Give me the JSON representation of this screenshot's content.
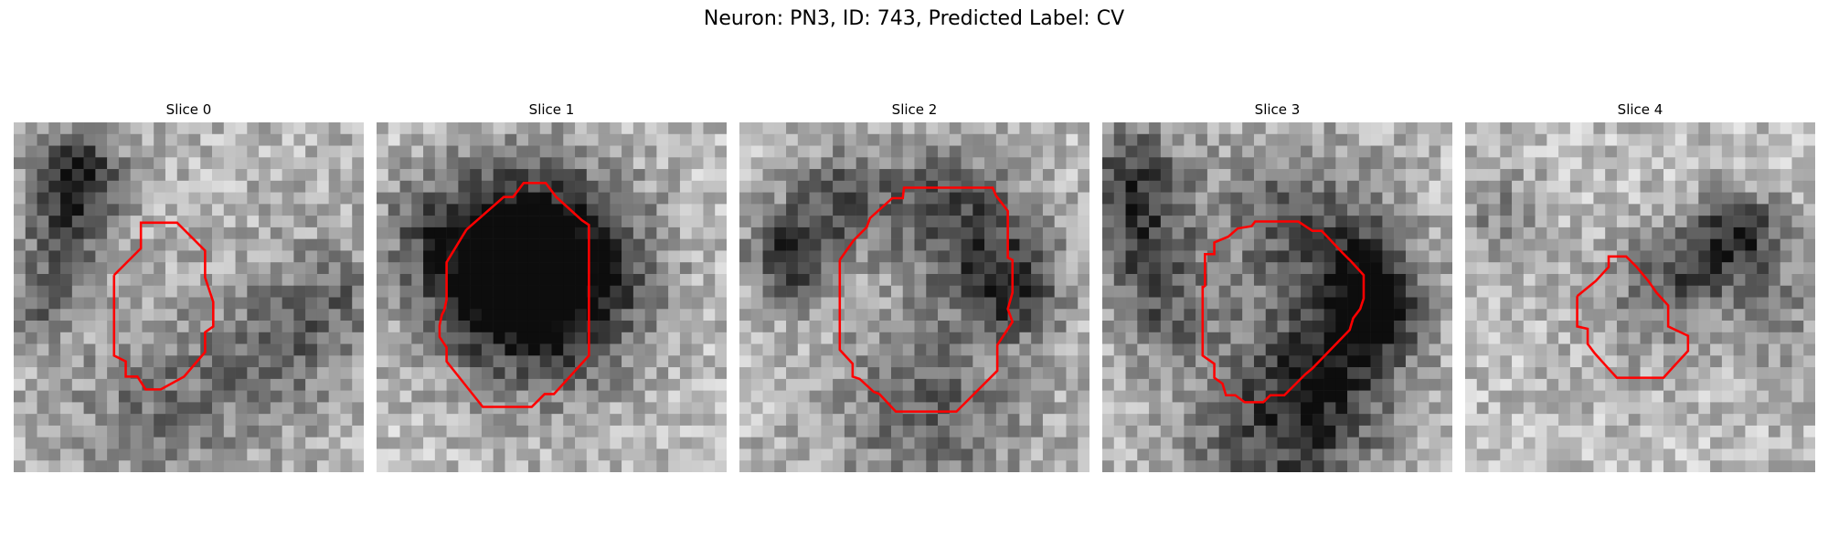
{
  "figure": {
    "title": "Neuron: PN3, ID: 743, Predicted Label: CV"
  },
  "panels": [
    {
      "title": "Slice 0"
    },
    {
      "title": "Slice 1"
    },
    {
      "title": "Slice 2"
    },
    {
      "title": "Slice 3"
    },
    {
      "title": "Slice 4"
    }
  ],
  "colors": {
    "contour": "#ff0000",
    "background": "#ffffff"
  }
}
